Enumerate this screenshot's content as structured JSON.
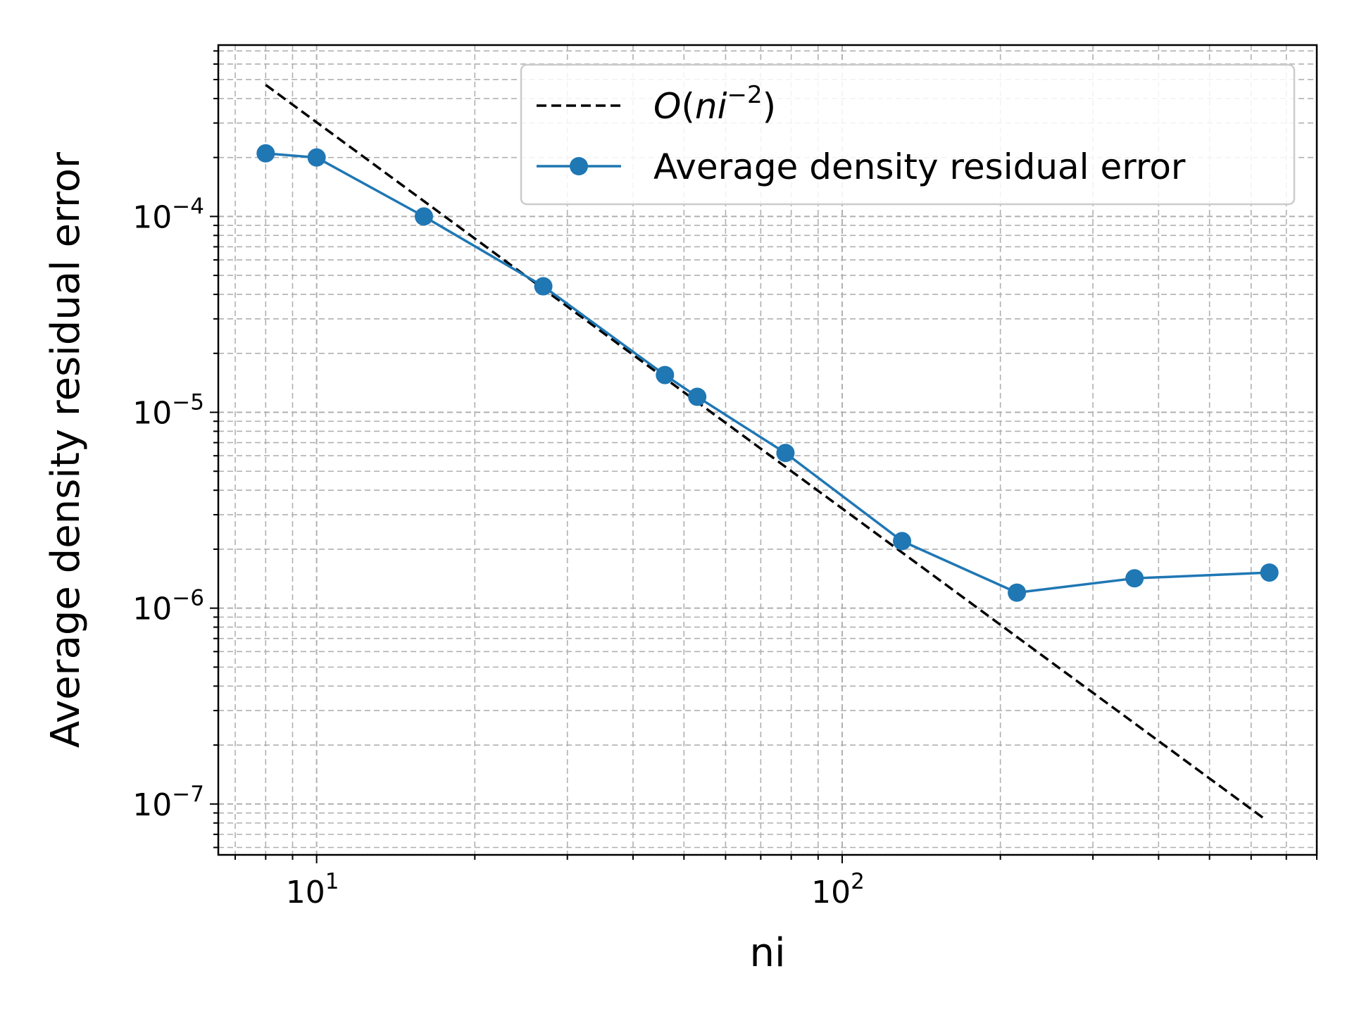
{
  "chart_data": {
    "type": "line",
    "title": "",
    "xlabel": "ni",
    "ylabel": "Average density residual error",
    "xscale": "log",
    "yscale": "log",
    "xlim": [
      6.5,
      800
    ],
    "ylim": [
      5.5e-08,
      0.00075
    ],
    "grid": true,
    "grid_style": "dashed, major and minor",
    "legend_position": "top-right",
    "x_tick_labels": [
      {
        "value": 10,
        "base": "10",
        "exp": "1"
      },
      {
        "value": 100,
        "base": "10",
        "exp": "2"
      }
    ],
    "y_tick_labels": [
      {
        "value": 0.0001,
        "base": "10",
        "exp": "−4"
      },
      {
        "value": 1e-05,
        "base": "10",
        "exp": "−5"
      },
      {
        "value": 1e-06,
        "base": "10",
        "exp": "−6"
      },
      {
        "value": 1e-07,
        "base": "10",
        "exp": "−7"
      }
    ],
    "series": [
      {
        "name": "O(ni⁻²)",
        "legend_parts": {
          "O": "O",
          "open": "(",
          "ni": "ni",
          "exp": "−2",
          "close": ")"
        },
        "style": "dashed",
        "color": "#000000",
        "marker": "none",
        "x": [
          8,
          640
        ],
        "y": [
          0.00047,
          8.3e-08
        ]
      },
      {
        "name": "Average density residual error",
        "style": "solid",
        "color": "#1f77b4",
        "marker": "circle",
        "x": [
          8,
          10,
          16,
          27,
          46,
          53,
          78,
          130,
          215,
          360,
          650
        ],
        "y": [
          0.00021,
          0.0002,
          0.0001,
          4.4e-05,
          1.55e-05,
          1.2e-05,
          6.2e-06,
          2.2e-06,
          1.2e-06,
          1.42e-06,
          1.52e-06
        ]
      }
    ]
  }
}
